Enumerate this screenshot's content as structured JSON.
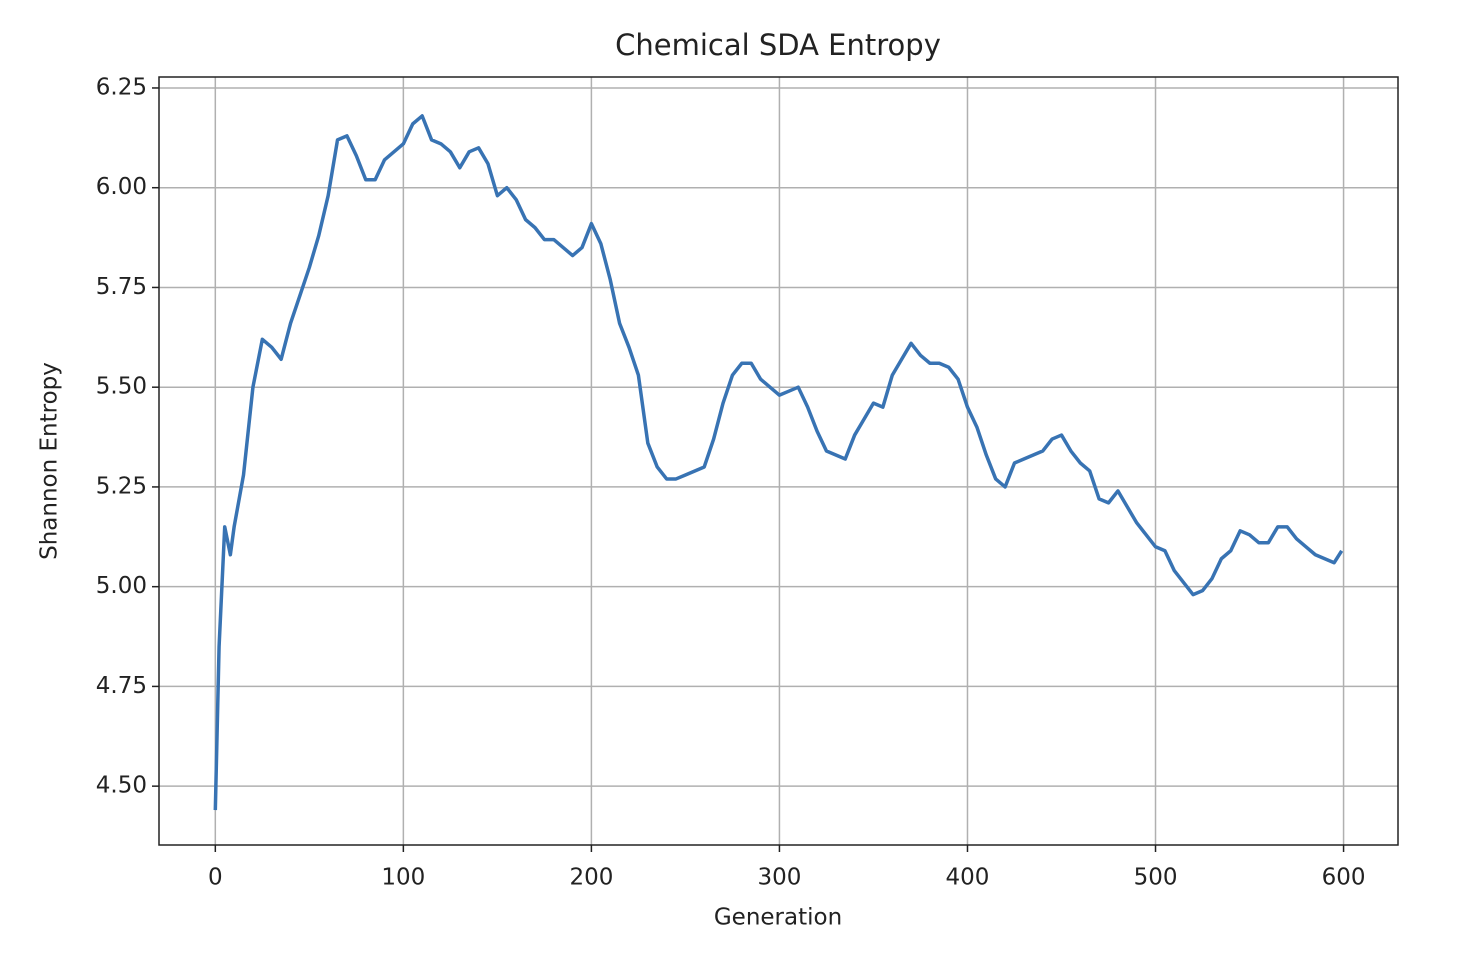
{
  "chart_data": {
    "type": "line",
    "title": "Chemical SDA Entropy",
    "x_label": "Generation",
    "y_label": "Shannon Entropy",
    "x": [
      0,
      2,
      5,
      8,
      10,
      15,
      20,
      25,
      30,
      35,
      40,
      45,
      50,
      55,
      60,
      65,
      70,
      75,
      80,
      85,
      90,
      95,
      100,
      105,
      110,
      115,
      120,
      125,
      130,
      135,
      140,
      145,
      150,
      155,
      160,
      165,
      170,
      175,
      180,
      185,
      190,
      195,
      200,
      205,
      210,
      215,
      220,
      225,
      230,
      235,
      240,
      245,
      250,
      255,
      260,
      265,
      270,
      275,
      280,
      285,
      290,
      295,
      300,
      305,
      310,
      315,
      320,
      325,
      330,
      335,
      340,
      345,
      350,
      355,
      360,
      365,
      370,
      375,
      380,
      385,
      390,
      395,
      400,
      405,
      410,
      415,
      420,
      425,
      430,
      435,
      440,
      445,
      450,
      455,
      460,
      465,
      470,
      475,
      480,
      485,
      490,
      495,
      500,
      505,
      510,
      515,
      520,
      525,
      530,
      535,
      540,
      545,
      550,
      555,
      560,
      565,
      570,
      575,
      580,
      585,
      590,
      595,
      599
    ],
    "series": [
      {
        "name": "Shannon Entropy",
        "color": "#3873b3",
        "values": [
          4.44,
          4.85,
          5.15,
          5.08,
          5.15,
          5.28,
          5.5,
          5.62,
          5.6,
          5.57,
          5.66,
          5.73,
          5.8,
          5.88,
          5.98,
          6.12,
          6.13,
          6.08,
          6.02,
          6.02,
          6.07,
          6.09,
          6.11,
          6.16,
          6.18,
          6.12,
          6.11,
          6.09,
          6.05,
          6.09,
          6.1,
          6.06,
          5.98,
          6.0,
          5.97,
          5.92,
          5.9,
          5.87,
          5.87,
          5.85,
          5.83,
          5.85,
          5.91,
          5.86,
          5.77,
          5.66,
          5.6,
          5.53,
          5.36,
          5.3,
          5.27,
          5.27,
          5.28,
          5.29,
          5.3,
          5.37,
          5.46,
          5.53,
          5.56,
          5.56,
          5.52,
          5.5,
          5.48,
          5.49,
          5.5,
          5.45,
          5.39,
          5.34,
          5.33,
          5.32,
          5.38,
          5.42,
          5.46,
          5.45,
          5.53,
          5.57,
          5.61,
          5.58,
          5.56,
          5.56,
          5.55,
          5.52,
          5.45,
          5.4,
          5.33,
          5.27,
          5.25,
          5.31,
          5.32,
          5.33,
          5.34,
          5.37,
          5.38,
          5.34,
          5.31,
          5.29,
          5.22,
          5.21,
          5.24,
          5.2,
          5.16,
          5.13,
          5.1,
          5.09,
          5.04,
          5.01,
          4.98,
          4.99,
          5.02,
          5.07,
          5.09,
          5.14,
          5.13,
          5.11,
          5.11,
          5.15,
          5.15,
          5.12,
          5.1,
          5.08,
          5.07,
          5.06,
          5.09
        ]
      }
    ],
    "xlim": [
      -29.95,
      628.95
    ],
    "ylim": [
      4.3525,
      6.2775
    ],
    "xticks": [
      0,
      100,
      200,
      300,
      400,
      500,
      600
    ],
    "yticks": [
      {
        "value": 4.5,
        "label": "4.50"
      },
      4.75,
      {
        "value": 5.0,
        "label": "5.00"
      },
      5.25,
      {
        "value": 5.5,
        "label": "5.50"
      },
      5.75,
      {
        "value": 6.0,
        "label": "6.00"
      },
      6.25
    ],
    "grid": true
  }
}
